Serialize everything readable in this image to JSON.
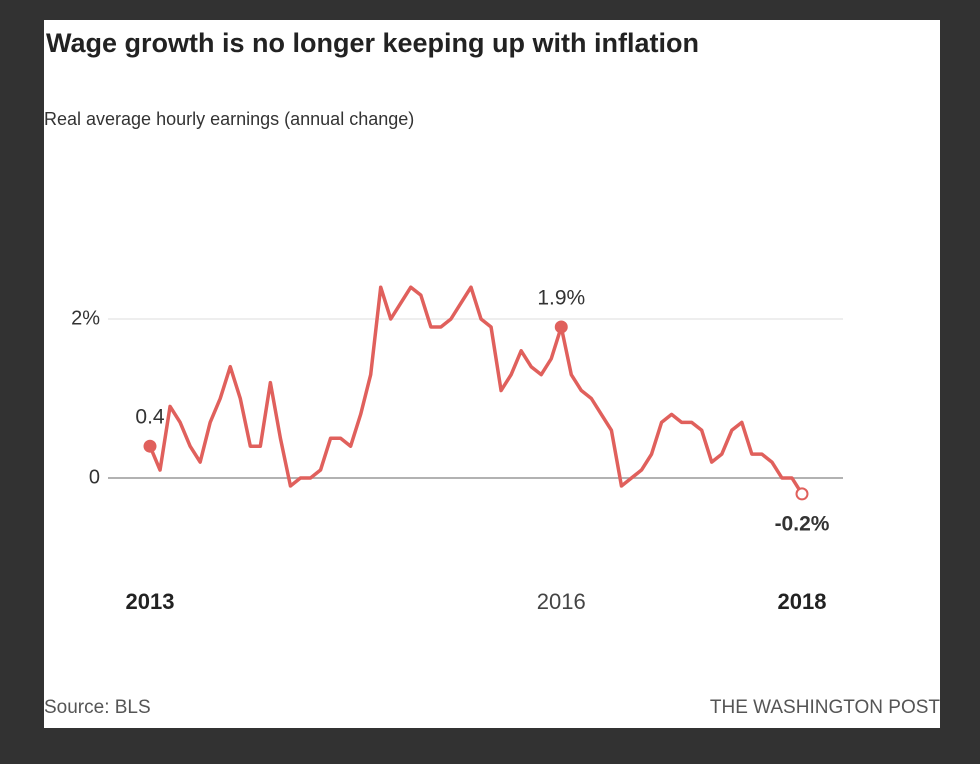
{
  "chart_data": {
    "type": "line",
    "title": "Wage growth is no longer keeping up with inflation",
    "subtitle": "Real average hourly earnings (annual change)",
    "source": "Source: BLS",
    "credit": "THE WASHINGTON POST",
    "categories": [
      "2013",
      null,
      null,
      null,
      null,
      null,
      null,
      null,
      null,
      null,
      null,
      null,
      null,
      null,
      null,
      null,
      null,
      null,
      null,
      null,
      null,
      null,
      null,
      null,
      null,
      null,
      null,
      null,
      null,
      null,
      null,
      null,
      null,
      null,
      null,
      null,
      null,
      null,
      null,
      null,
      null,
      "2016",
      null,
      null,
      null,
      null,
      null,
      null,
      null,
      null,
      null,
      null,
      null,
      null,
      null,
      null,
      null,
      null,
      null,
      null,
      null,
      null,
      null,
      null,
      null,
      "2018"
    ],
    "series": [
      {
        "name": "Real average hourly earnings",
        "color": "#e0605c",
        "values": [
          0.4,
          0.1,
          0.9,
          0.7,
          0.4,
          0.2,
          0.7,
          1.0,
          1.4,
          1.0,
          0.4,
          0.4,
          1.2,
          0.5,
          -0.1,
          0.0,
          0.0,
          0.1,
          0.5,
          0.5,
          0.4,
          0.8,
          1.3,
          2.4,
          2.0,
          2.2,
          2.4,
          2.3,
          1.9,
          1.9,
          2.0,
          2.2,
          2.4,
          2.0,
          1.9,
          1.1,
          1.3,
          1.6,
          1.4,
          1.3,
          1.5,
          1.9,
          1.3,
          1.1,
          1.0,
          0.8,
          0.6,
          -0.1,
          0.0,
          0.1,
          0.3,
          0.7,
          0.8,
          0.7,
          0.7,
          0.6,
          0.2,
          0.3,
          0.6,
          0.7,
          0.3,
          0.3,
          0.2,
          0.0,
          0.0,
          -0.2
        ],
        "value_labels": [
          "0.4",
          null,
          null,
          null,
          null,
          null,
          null,
          null,
          null,
          null,
          null,
          null,
          null,
          null,
          null,
          null,
          null,
          null,
          null,
          null,
          null,
          null,
          null,
          null,
          null,
          null,
          null,
          null,
          null,
          null,
          null,
          null,
          null,
          null,
          null,
          null,
          null,
          null,
          null,
          null,
          null,
          "1.9%",
          null,
          null,
          null,
          null,
          null,
          null,
          null,
          null,
          null,
          null,
          null,
          null,
          null,
          null,
          null,
          null,
          null,
          null,
          null,
          null,
          null,
          null,
          null,
          "-0.2%"
        ]
      }
    ],
    "ylim": [
      -1.0,
      3.4
    ],
    "yticks": [
      0,
      {
        "value": 2,
        "label": "2%"
      }
    ],
    "grid": true
  }
}
